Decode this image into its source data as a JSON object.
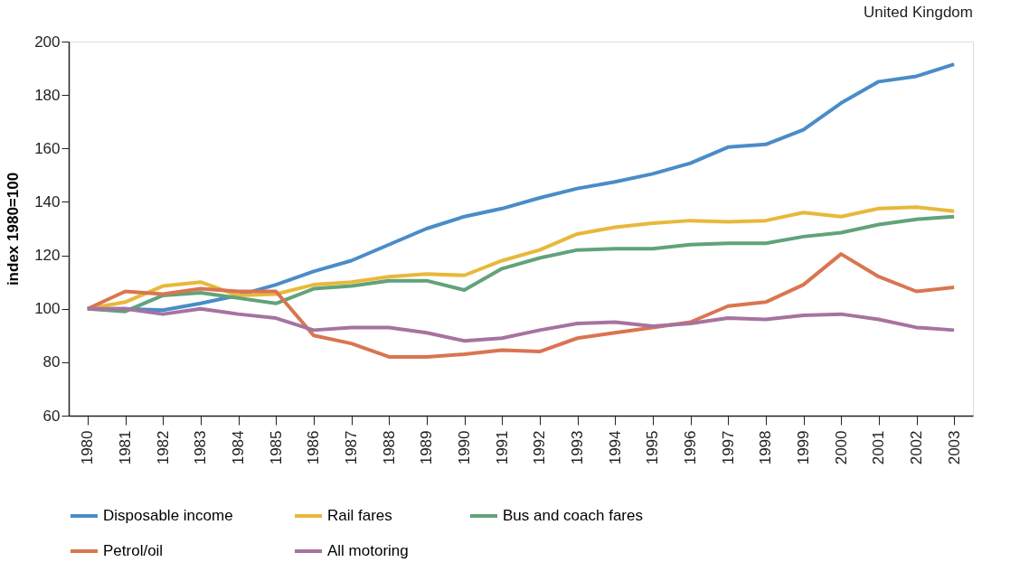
{
  "chart_data": {
    "type": "line",
    "ylabel": "index 1980=100",
    "annotations": [
      "United Kingdom"
    ],
    "categories": [
      "1980",
      "1981",
      "1982",
      "1983",
      "1984",
      "1985",
      "1986",
      "1987",
      "1988",
      "1989",
      "1990",
      "1991",
      "1992",
      "1993",
      "1994",
      "1995",
      "1996",
      "1997",
      "1998",
      "1999",
      "2000",
      "2001",
      "2002",
      "2003"
    ],
    "ylim": [
      60,
      200
    ],
    "yticks": [
      60,
      80,
      100,
      120,
      140,
      160,
      180,
      200
    ],
    "grid": false,
    "legend": "bottom",
    "marker": "none",
    "line_style": "solid",
    "series": [
      {
        "name": "Disposable income",
        "color": "#4a8cc8",
        "values": [
          100,
          100,
          99.5,
          102,
          105,
          109,
          114,
          118,
          124,
          130,
          134.5,
          137.5,
          141.5,
          145,
          147.5,
          150.5,
          154.5,
          160.5,
          161.5,
          167,
          177,
          185,
          187,
          191.5
        ]
      },
      {
        "name": "Rail fares",
        "color": "#e8b83a",
        "values": [
          100,
          102.5,
          108.5,
          110,
          105,
          105.5,
          109,
          110,
          112,
          113,
          112.5,
          118,
          122,
          128,
          130.5,
          132,
          133,
          132.5,
          133,
          136,
          134.5,
          137.5,
          138,
          136.5
        ]
      },
      {
        "name": "Bus and coach fares",
        "color": "#62a27a",
        "values": [
          100,
          99,
          105,
          106,
          104,
          102,
          107.5,
          108.5,
          110.5,
          110.5,
          107,
          115,
          119,
          122,
          122.5,
          122.5,
          124,
          124.5,
          124.5,
          127,
          128.5,
          131.5,
          133.5,
          134.5
        ]
      },
      {
        "name": "Petrol/oil",
        "color": "#d97550",
        "values": [
          100,
          106.5,
          105.5,
          107.5,
          106.5,
          106.5,
          90,
          87,
          82,
          82,
          83,
          84.5,
          84,
          89,
          91,
          93,
          95,
          101,
          102.5,
          109,
          120.5,
          112,
          106.5,
          108
        ]
      },
      {
        "name": "All motoring",
        "color": "#a673a0",
        "values": [
          100,
          100,
          98,
          100,
          98,
          96.5,
          92,
          93,
          93,
          91,
          88,
          89,
          92,
          94.5,
          95,
          93.5,
          94.5,
          96.5,
          96,
          97.5,
          98,
          96,
          93,
          92
        ]
      }
    ]
  }
}
